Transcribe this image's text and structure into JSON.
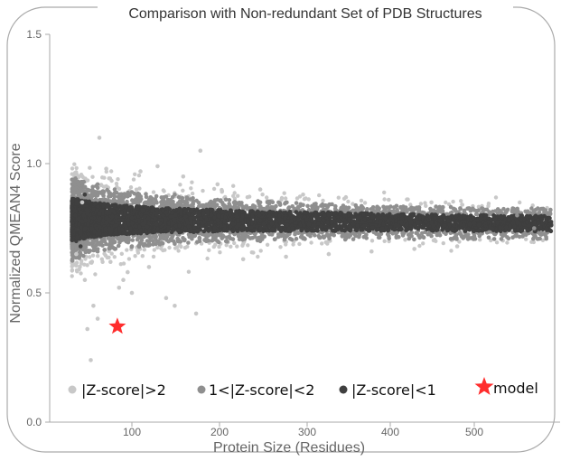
{
  "chart_data": {
    "type": "scatter",
    "title": "Comparison with Non-redundant Set of PDB Structures",
    "xlabel": "Protein Size (Residues)",
    "ylabel": "Normalized QMEAN4 Score",
    "xlim": [
      0,
      590
    ],
    "ylim": [
      0,
      1.5
    ],
    "x_ticks": [
      "100",
      "200",
      "300",
      "400",
      "500"
    ],
    "y_ticks": [
      "0.0",
      "0.5",
      "1.0",
      "1.5"
    ],
    "grid": false,
    "legend_position": "bottom",
    "series": [
      {
        "name": "|Z-score|>2",
        "color": "#c8c8c8",
        "description_points": [
          [
            62,
            1.1
          ],
          [
            38,
            0.95
          ],
          [
            180,
            1.05
          ],
          [
            70,
            0.98
          ],
          [
            45,
            0.55
          ],
          [
            55,
            0.45
          ],
          [
            60,
            0.4
          ],
          [
            35,
            0.65
          ],
          [
            100,
            0.5
          ],
          [
            150,
            0.45
          ],
          [
            140,
            0.48
          ],
          [
            48,
            0.36
          ],
          [
            52,
            0.24
          ],
          [
            175,
            0.42
          ],
          [
            85,
            0.52
          ],
          [
            90,
            0.55
          ],
          [
            120,
            0.6
          ],
          [
            42,
            0.85
          ],
          [
            200,
            0.92
          ],
          [
            250,
            0.9
          ],
          [
            300,
            0.88
          ],
          [
            350,
            0.87
          ],
          [
            400,
            0.86
          ],
          [
            450,
            0.85
          ],
          [
            230,
            0.63
          ],
          [
            280,
            0.64
          ],
          [
            330,
            0.65
          ],
          [
            380,
            0.66
          ],
          [
            430,
            0.67
          ],
          [
            480,
            0.68
          ],
          [
            110,
            0.97
          ],
          [
            130,
            0.99
          ],
          [
            160,
            0.95
          ],
          [
            75,
            0.62
          ],
          [
            95,
            0.58
          ]
        ]
      },
      {
        "name": "1<|Z-score|<2",
        "color": "#8f8f8f",
        "description_points": [
          [
            40,
            0.9
          ],
          [
            60,
            0.92
          ],
          [
            80,
            0.9
          ],
          [
            100,
            0.89
          ],
          [
            150,
            0.88
          ],
          [
            200,
            0.86
          ],
          [
            250,
            0.85
          ],
          [
            300,
            0.84
          ],
          [
            350,
            0.83
          ],
          [
            400,
            0.83
          ],
          [
            450,
            0.82
          ],
          [
            500,
            0.82
          ],
          [
            40,
            0.65
          ],
          [
            60,
            0.66
          ],
          [
            80,
            0.67
          ],
          [
            100,
            0.68
          ],
          [
            150,
            0.69
          ],
          [
            200,
            0.7
          ],
          [
            250,
            0.7
          ],
          [
            300,
            0.71
          ],
          [
            350,
            0.71
          ],
          [
            400,
            0.72
          ],
          [
            450,
            0.72
          ],
          [
            500,
            0.72
          ],
          [
            550,
            0.8
          ],
          [
            570,
            0.75
          ]
        ]
      },
      {
        "name": "|Z-score|<1",
        "color": "#3f3f3f",
        "description_points": [
          [
            30,
            0.78
          ],
          [
            50,
            0.78
          ],
          [
            70,
            0.79
          ],
          [
            100,
            0.79
          ],
          [
            150,
            0.78
          ],
          [
            200,
            0.78
          ],
          [
            250,
            0.78
          ],
          [
            300,
            0.77
          ],
          [
            350,
            0.77
          ],
          [
            400,
            0.77
          ],
          [
            450,
            0.77
          ],
          [
            500,
            0.77
          ],
          [
            550,
            0.77
          ],
          [
            580,
            0.77
          ],
          [
            35,
            0.86
          ],
          [
            35,
            0.7
          ],
          [
            40,
            0.68
          ],
          [
            45,
            0.88
          ]
        ]
      }
    ],
    "model": {
      "name": "model",
      "color": "#ff2d2d",
      "x": 83,
      "y": 0.37
    }
  },
  "legend": {
    "items": [
      {
        "label": "|Z-score|>2",
        "color": "#c8c8c8",
        "marker": "dot"
      },
      {
        "label": "1<|Z-score|<2",
        "color": "#8f8f8f",
        "marker": "dot"
      },
      {
        "label": "|Z-score|<1",
        "color": "#3f3f3f",
        "marker": "dot"
      },
      {
        "label": "model",
        "color": "#ff2d2d",
        "marker": "star"
      }
    ]
  }
}
